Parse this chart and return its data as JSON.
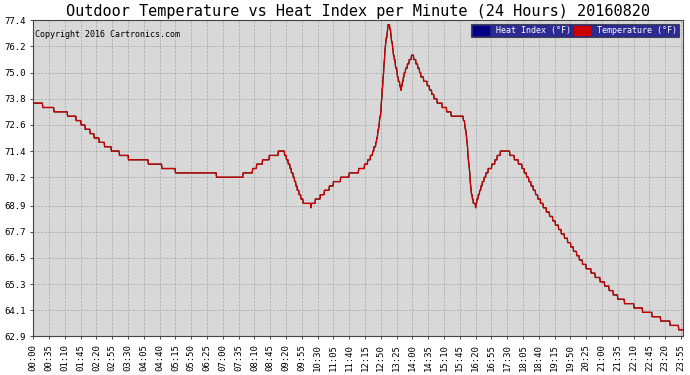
{
  "title": "Outdoor Temperature vs Heat Index per Minute (24 Hours) 20160820",
  "copyright": "Copyright 2016 Cartronics.com",
  "yticks": [
    62.9,
    64.1,
    65.3,
    66.5,
    67.7,
    68.9,
    70.2,
    71.4,
    72.6,
    73.8,
    75.0,
    76.2,
    77.4
  ],
  "ymin": 62.9,
  "ymax": 77.4,
  "legend_labels": [
    "Heat Index (°F)",
    "Temperature (°F)"
  ],
  "temp_color": "#cc0000",
  "heat_color": "#1a1a1a",
  "bg_color": "#d8d8d8",
  "grid_color": "#aaaaaa",
  "title_fontsize": 11,
  "tick_fontsize": 6.5
}
